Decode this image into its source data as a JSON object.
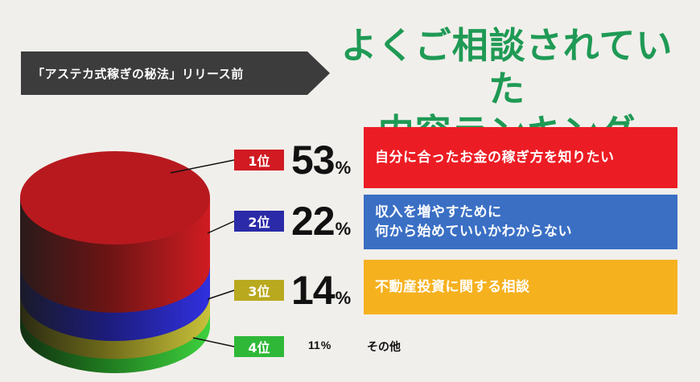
{
  "header": {
    "tag": "「アステカ式稼ぎの秘法」リリース前",
    "title_line1": "よくご相談されていた",
    "title_line2": "内容ランキング"
  },
  "colors": {
    "title": "#1f9a55",
    "tag_bg": "#3c3c3c",
    "rank1": "#ec1c24",
    "rank2": "#3a6fc4",
    "rank3": "#f6b11f",
    "rank4": "#38c23a"
  },
  "chart_data": {
    "type": "pie",
    "title": "よくご相談されていた内容ランキング",
    "categories": [
      "自分に合ったお金の稼ぎ方を知りたい",
      "収入を増やすために何から始めていいかわからない",
      "不動産投資に関する相談",
      "その他"
    ],
    "values": [
      53,
      22,
      14,
      11
    ],
    "unit": "%",
    "ranks": [
      "1位",
      "2位",
      "3位",
      "4位"
    ]
  },
  "items": [
    {
      "rank": "1位",
      "pct": "53",
      "unit": "%",
      "line1": "自分に合ったお金の稼ぎ方を知りたい",
      "line2": ""
    },
    {
      "rank": "2位",
      "pct": "22",
      "unit": "%",
      "line1": "収入を増やすために",
      "line2": "何から始めていいかわからない"
    },
    {
      "rank": "3位",
      "pct": "14",
      "unit": "%",
      "line1": "不動産投資に関する相談",
      "line2": ""
    },
    {
      "rank": "4位",
      "pct": "11",
      "unit": "%",
      "line1": "その他",
      "line2": ""
    }
  ]
}
